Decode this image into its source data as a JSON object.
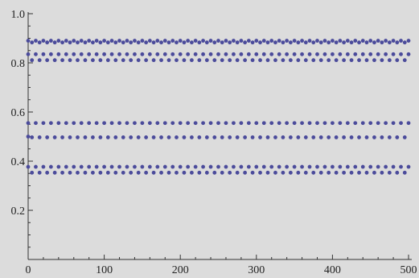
{
  "chart_data": {
    "type": "scatter",
    "title": "",
    "xlabel": "",
    "ylabel": "",
    "xlim": [
      0,
      500
    ],
    "ylim": [
      0,
      1.0
    ],
    "x_ticks": [
      0,
      100,
      200,
      300,
      400,
      500
    ],
    "x_tick_labels": [
      "0",
      "100",
      "200",
      "300",
      "400",
      "500"
    ],
    "y_ticks": [
      0.2,
      0.4,
      0.6,
      0.8,
      1.0
    ],
    "y_tick_labels": [
      "0.2",
      "0.4",
      "0.6",
      "0.8",
      "1.0"
    ],
    "grid": false,
    "marker_color": "#4b4b9b",
    "background_color": "#dcdcdc",
    "series": [
      {
        "description": "alternating bands (period 2 in n), x from 0 to 500 step 5",
        "x_start": 0,
        "x_end": 500,
        "x_step": 5,
        "bands": [
          {
            "even_y": 0.89,
            "odd_y": 0.883
          },
          {
            "even_y": 0.835,
            "odd_y": 0.811
          },
          {
            "even_y": 0.555,
            "odd_y": 0.497
          },
          {
            "even_y": 0.377,
            "odd_y": 0.353
          }
        ]
      }
    ],
    "isolated_points": [
      {
        "x": 0,
        "y": 0.5
      }
    ]
  }
}
